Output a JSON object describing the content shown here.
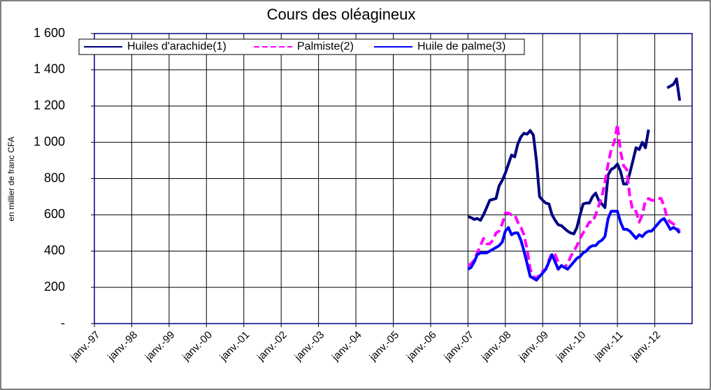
{
  "chart_data": {
    "type": "line",
    "title": "Cours des oléagineux",
    "y_label": "en millier de franc CFA",
    "x": [
      120,
      121,
      122,
      123,
      124,
      125,
      126,
      127,
      128,
      129,
      130,
      131,
      132,
      133,
      134,
      135,
      136,
      137,
      138,
      139,
      140,
      141,
      142,
      143,
      144,
      145,
      146,
      147,
      148,
      149,
      150,
      151,
      152,
      153,
      154,
      155,
      156,
      157,
      158,
      159,
      160,
      161,
      162,
      163,
      164,
      165,
      166,
      167,
      168,
      169,
      170,
      171,
      172,
      173,
      174,
      175,
      176,
      177,
      178,
      179,
      180,
      181,
      182,
      183,
      184,
      185,
      186,
      187,
      188
    ],
    "xlim": [
      0,
      192
    ],
    "xticks": [
      {
        "value": 0,
        "label": "janv.-97"
      },
      {
        "value": 12,
        "label": "janv.-98"
      },
      {
        "value": 24,
        "label": "janv.-99"
      },
      {
        "value": 36,
        "label": "janv.-00"
      },
      {
        "value": 48,
        "label": "janv.-01"
      },
      {
        "value": 60,
        "label": "janv.-02"
      },
      {
        "value": 72,
        "label": "janv.-03"
      },
      {
        "value": 84,
        "label": "janv.-04"
      },
      {
        "value": 96,
        "label": "janv.-05"
      },
      {
        "value": 108,
        "label": "janv.-06"
      },
      {
        "value": 120,
        "label": "janv.-07"
      },
      {
        "value": 132,
        "label": "janv.-08"
      },
      {
        "value": 144,
        "label": "janv.-09"
      },
      {
        "value": 156,
        "label": "janv.-10"
      },
      {
        "value": 168,
        "label": "janv.-11"
      },
      {
        "value": 180,
        "label": "janv.-12"
      }
    ],
    "ylim": [
      0,
      1600
    ],
    "yticks": [
      {
        "value": 0,
        "label": "-"
      },
      200,
      400,
      600,
      800,
      {
        "value": 1000,
        "label": "1 000"
      },
      {
        "value": 1200,
        "label": "1 200"
      },
      {
        "value": 1400,
        "label": "1 400"
      },
      {
        "value": 1600,
        "label": "1 600"
      }
    ],
    "grid": true,
    "series": [
      {
        "name": "Huiles d'arachide(1)",
        "color": "#000080",
        "dashed": false,
        "values": [
          590,
          585,
          575,
          580,
          570,
          600,
          640,
          680,
          685,
          690,
          760,
          790,
          830,
          880,
          930,
          920,
          990,
          1030,
          1050,
          1045,
          1065,
          1040,
          900,
          700,
          680,
          665,
          660,
          600,
          570,
          545,
          540,
          525,
          510,
          500,
          495,
          530,
          600,
          660,
          665,
          665,
          700,
          720,
          680,
          660,
          640,
          820,
          850,
          860,
          880,
          840,
          770,
          770,
          830,
          900,
          970,
          960,
          1000,
          970,
          1070,
          null,
          null,
          null,
          null,
          null,
          1300,
          1310,
          1320,
          1350,
          1230
        ]
      },
      {
        "name": "Palmiste(2)",
        "color": "#ff00ff",
        "dashed": true,
        "values": [
          320,
          330,
          350,
          390,
          430,
          470,
          440,
          440,
          460,
          500,
          510,
          550,
          610,
          610,
          600,
          600,
          560,
          530,
          490,
          410,
          300,
          260,
          250,
          270,
          290,
          300,
          350,
          390,
          380,
          340,
          320,
          310,
          330,
          370,
          400,
          430,
          470,
          500,
          530,
          560,
          560,
          600,
          650,
          700,
          780,
          880,
          960,
          1000,
          1100,
          950,
          870,
          850,
          700,
          620,
          620,
          560,
          600,
          680,
          690,
          680,
          680,
          690,
          690,
          650,
          580,
          560,
          550,
          530,
          510
        ]
      },
      {
        "name": "Huile de palme(3)",
        "color": "#0000ff",
        "dashed": false,
        "values": [
          300,
          310,
          340,
          380,
          390,
          390,
          390,
          400,
          410,
          420,
          430,
          450,
          510,
          530,
          490,
          500,
          500,
          460,
          400,
          330,
          260,
          250,
          240,
          260,
          280,
          300,
          340,
          380,
          340,
          300,
          320,
          310,
          300,
          320,
          340,
          360,
          370,
          390,
          400,
          420,
          430,
          430,
          450,
          460,
          480,
          580,
          620,
          620,
          620,
          560,
          520,
          520,
          510,
          490,
          470,
          490,
          480,
          500,
          510,
          510,
          530,
          550,
          570,
          580,
          550,
          520,
          530,
          520,
          500
        ]
      }
    ]
  }
}
